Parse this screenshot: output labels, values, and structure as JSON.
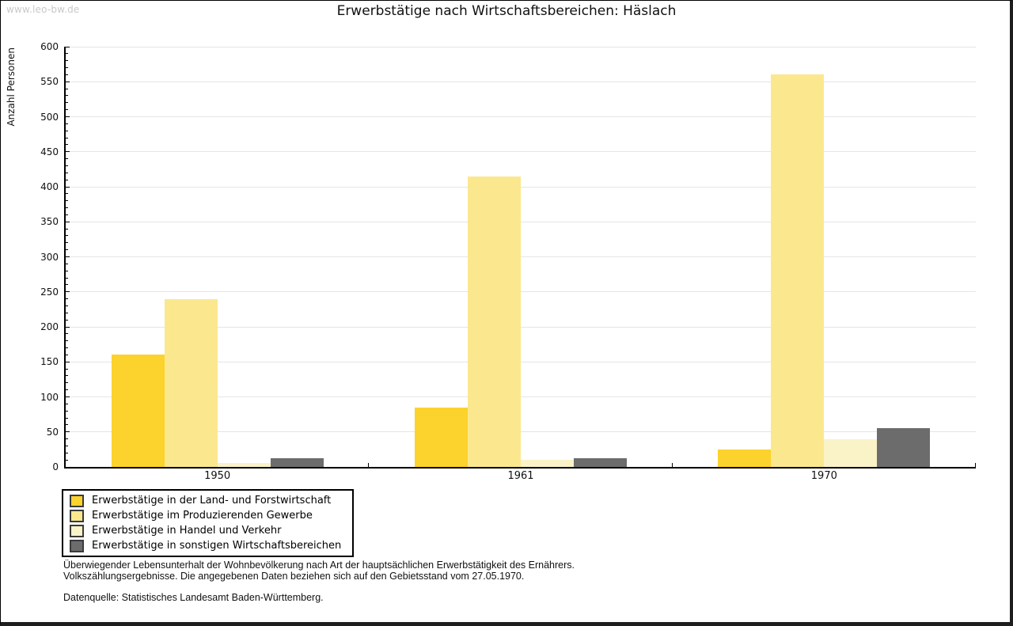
{
  "watermark": "www.leo-bw.de",
  "chart_data": {
    "type": "bar",
    "title": "Erwerbstätige nach Wirtschaftsbereichen: Häslach",
    "xlabel": "",
    "ylabel": "Anzahl Personen",
    "ylim": [
      0,
      600
    ],
    "ytick_step": 50,
    "yminor_step": 10,
    "grid": true,
    "legend_position": "bottom-left",
    "categories": [
      "1950",
      "1961",
      "1970"
    ],
    "series": [
      {
        "name": "Erwerbstätige in der Land- und Forstwirtschaft",
        "color": "#FCD22C",
        "values": [
          160,
          85,
          25
        ]
      },
      {
        "name": "Erwerbstätige im Produzierenden Gewerbe",
        "color": "#FBE88E",
        "values": [
          240,
          415,
          560
        ]
      },
      {
        "name": "Erwerbstätige in Handel und Verkehr",
        "color": "#FAF3C8",
        "values": [
          6,
          10,
          40
        ]
      },
      {
        "name": "Erwerbstätige in sonstigen Wirtschaftsbereichen",
        "color": "#6C6C6C",
        "values": [
          12,
          13,
          55
        ]
      }
    ],
    "colors": {
      "gridline": "#E5E5E5",
      "axis": "#000000",
      "watermark_text": "#C9C9C9"
    }
  },
  "footnotes": {
    "line1": "Überwiegender Lebensunterhalt der Wohnbevölkerung nach Art der hauptsächlichen Erwerbstätigkeit des Ernährers.",
    "line2": "Volkszählungsergebnisse. Die angegebenen Daten beziehen sich auf den Gebietsstand vom 27.05.1970.",
    "source": "Datenquelle: Statistisches Landesamt Baden-Württemberg."
  }
}
